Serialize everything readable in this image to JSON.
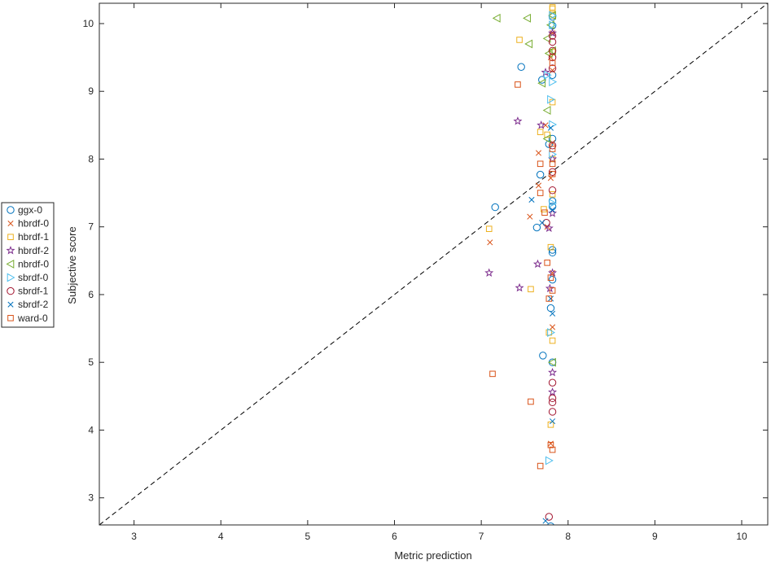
{
  "chart_data": {
    "type": "scatter",
    "title": "",
    "xlabel": "Metric prediction",
    "ylabel": "Subjective score",
    "xlim": [
      2.6,
      10.3
    ],
    "ylim": [
      2.6,
      10.3
    ],
    "xticks": [
      3,
      4,
      5,
      6,
      7,
      8,
      9,
      10
    ],
    "yticks": [
      3,
      4,
      5,
      6,
      7,
      8,
      9,
      10
    ],
    "grid": false,
    "legend_position": "outside-left",
    "reference_line": {
      "type": "identity",
      "style": "dashed",
      "color": "#000000"
    },
    "series": [
      {
        "name": "ggx-0",
        "marker": "circle",
        "color": "#0072BD",
        "points": [
          [
            7.16,
            7.29
          ],
          [
            7.46,
            9.36
          ],
          [
            7.64,
            6.99
          ],
          [
            7.71,
            5.1
          ],
          [
            7.68,
            7.77
          ],
          [
            7.7,
            9.17
          ],
          [
            7.78,
            8.22
          ],
          [
            7.8,
            5.8
          ],
          [
            7.82,
            6.62
          ],
          [
            7.82,
            6.22
          ],
          [
            7.82,
            7.3
          ],
          [
            7.82,
            7.38
          ],
          [
            7.82,
            8.3
          ],
          [
            7.82,
            9.97
          ],
          [
            7.82,
            9.24
          ],
          [
            7.82,
            5.0
          ],
          [
            7.82,
            6.66
          ],
          [
            7.8,
            2.58
          ],
          [
            7.82,
            10.1
          ]
        ]
      },
      {
        "name": "hbrdf-0",
        "marker": "x",
        "color": "#D95319",
        "points": [
          [
            7.1,
            6.77
          ],
          [
            7.56,
            7.15
          ],
          [
            7.66,
            8.09
          ],
          [
            7.66,
            7.61
          ],
          [
            7.76,
            7.0
          ],
          [
            7.74,
            8.5
          ],
          [
            7.8,
            9.5
          ],
          [
            7.8,
            7.72
          ],
          [
            7.82,
            6.32
          ],
          [
            7.82,
            5.52
          ],
          [
            7.82,
            8.24
          ],
          [
            7.82,
            9.31
          ],
          [
            7.8,
            3.8
          ],
          [
            7.82,
            9.86
          ]
        ]
      },
      {
        "name": "hbrdf-1",
        "marker": "square",
        "color": "#EDB120",
        "points": [
          [
            7.09,
            6.97
          ],
          [
            7.44,
            9.76
          ],
          [
            7.57,
            6.08
          ],
          [
            7.68,
            8.4
          ],
          [
            7.72,
            7.26
          ],
          [
            7.76,
            8.36
          ],
          [
            7.78,
            5.44
          ],
          [
            7.8,
            4.08
          ],
          [
            7.8,
            6.7
          ],
          [
            7.82,
            8.0
          ],
          [
            7.82,
            7.48
          ],
          [
            7.82,
            8.84
          ],
          [
            7.82,
            10.22
          ],
          [
            7.82,
            10.12
          ],
          [
            7.82,
            9.58
          ],
          [
            7.82,
            5.32
          ],
          [
            7.82,
            10.24
          ]
        ]
      },
      {
        "name": "hbrdf-2",
        "marker": "star",
        "color": "#7E2F8E",
        "points": [
          [
            7.09,
            6.32
          ],
          [
            7.42,
            8.56
          ],
          [
            7.44,
            6.1
          ],
          [
            7.65,
            6.45
          ],
          [
            7.69,
            8.5
          ],
          [
            7.74,
            9.28
          ],
          [
            7.78,
            6.98
          ],
          [
            7.79,
            6.09
          ],
          [
            7.82,
            7.2
          ],
          [
            7.82,
            8.0
          ],
          [
            7.82,
            6.32
          ],
          [
            7.82,
            4.85
          ],
          [
            7.82,
            4.56
          ],
          [
            7.82,
            9.86
          ]
        ]
      },
      {
        "name": "nbrdf-0",
        "marker": "triangle-left",
        "color": "#77AC30",
        "points": [
          [
            7.18,
            10.08
          ],
          [
            7.53,
            10.08
          ],
          [
            7.55,
            9.7
          ],
          [
            7.7,
            9.12
          ],
          [
            7.76,
            8.72
          ],
          [
            7.76,
            8.3
          ],
          [
            7.76,
            9.78
          ],
          [
            7.78,
            9.56
          ],
          [
            7.8,
            9.98
          ],
          [
            7.82,
            5.0
          ],
          [
            7.82,
            10.12
          ],
          [
            7.82,
            9.6
          ]
        ]
      },
      {
        "name": "sbrdf-0",
        "marker": "triangle-right",
        "color": "#4DBEEE",
        "points": [
          [
            7.76,
            9.24
          ],
          [
            7.8,
            8.88
          ],
          [
            7.82,
            9.14
          ],
          [
            7.82,
            8.07
          ],
          [
            7.82,
            7.35
          ],
          [
            7.8,
            5.44
          ],
          [
            7.78,
            3.55
          ],
          [
            7.82,
            10.12
          ],
          [
            7.82,
            9.98
          ],
          [
            7.82,
            8.51
          ]
        ]
      },
      {
        "name": "sbrdf-1",
        "marker": "circle",
        "color": "#A2142F",
        "points": [
          [
            7.75,
            7.06
          ],
          [
            7.82,
            7.54
          ],
          [
            7.82,
            7.81
          ],
          [
            7.82,
            9.6
          ],
          [
            7.82,
            9.73
          ],
          [
            7.82,
            9.82
          ],
          [
            7.82,
            9.5
          ],
          [
            7.82,
            9.34
          ],
          [
            7.82,
            8.2
          ],
          [
            7.82,
            4.7
          ],
          [
            7.82,
            4.47
          ],
          [
            7.82,
            4.41
          ],
          [
            7.82,
            4.27
          ],
          [
            7.78,
            2.72
          ]
        ]
      },
      {
        "name": "sbrdf-2",
        "marker": "x",
        "color": "#0072BD",
        "points": [
          [
            7.58,
            7.4
          ],
          [
            7.7,
            7.06
          ],
          [
            7.8,
            8.46
          ],
          [
            7.8,
            5.94
          ],
          [
            7.82,
            5.72
          ],
          [
            7.82,
            4.13
          ],
          [
            7.82,
            7.25
          ],
          [
            7.74,
            2.66
          ]
        ]
      },
      {
        "name": "ward-0",
        "marker": "square",
        "color": "#D95319",
        "points": [
          [
            7.13,
            4.83
          ],
          [
            7.42,
            9.1
          ],
          [
            7.57,
            4.42
          ],
          [
            7.68,
            7.5
          ],
          [
            7.68,
            7.93
          ],
          [
            7.68,
            3.47
          ],
          [
            7.73,
            7.21
          ],
          [
            7.76,
            6.47
          ],
          [
            7.78,
            5.94
          ],
          [
            7.8,
            6.25
          ],
          [
            7.8,
            3.78
          ],
          [
            7.82,
            6.06
          ],
          [
            7.82,
            3.71
          ],
          [
            7.82,
            7.93
          ],
          [
            7.82,
            8.15
          ],
          [
            7.82,
            7.78
          ],
          [
            7.82,
            9.42
          ]
        ]
      }
    ]
  }
}
